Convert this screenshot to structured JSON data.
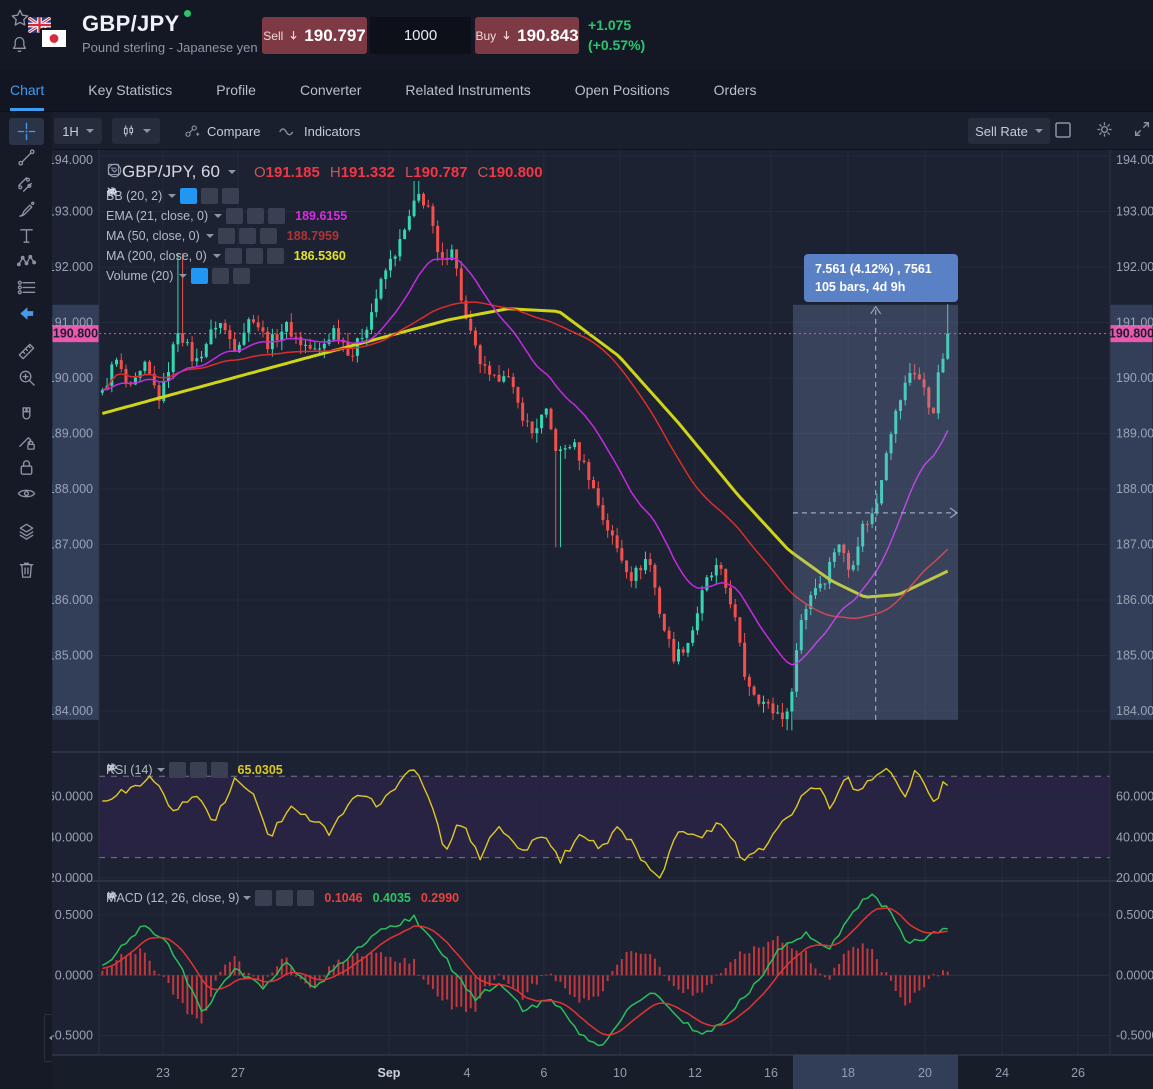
{
  "header": {
    "symbol": "GBP/JPY",
    "subtitle": "Pound sterling - Japanese yen",
    "sell_label": "Sell",
    "sell_price": "190.797",
    "quantity": "1000",
    "buy_label": "Buy",
    "buy_price": "190.843",
    "change_abs": "+1.075",
    "change_pct": "(+0.57%)"
  },
  "tabs": [
    {
      "label": "Chart",
      "active": true
    },
    {
      "label": "Key Statistics",
      "active": false
    },
    {
      "label": "Profile",
      "active": false
    },
    {
      "label": "Converter",
      "active": false
    },
    {
      "label": "Related Instruments",
      "active": false
    },
    {
      "label": "Open Positions",
      "active": false
    },
    {
      "label": "Orders",
      "active": false
    }
  ],
  "toolbar": {
    "interval": "1H",
    "compare_label": "Compare",
    "indicators_label": "Indicators",
    "sell_rate_label": "Sell Rate"
  },
  "side_tools": {
    "groups": [
      [
        "crosshair",
        "trend-line",
        "parallel-channel",
        "brush",
        "text",
        "xabcd-pattern",
        "forecast",
        "arrow-left"
      ],
      [
        "ruler",
        "zoom-in"
      ],
      [
        "magnet",
        "drawing-lock",
        "lock-all",
        "hide-drawings"
      ],
      [
        "layers"
      ],
      [
        "remove-drawings"
      ]
    ],
    "active": "crosshair"
  },
  "legend": {
    "title": "GBP/JPY, 60",
    "o_label": "O",
    "o": "191.185",
    "h_label": "H",
    "h": "191.332",
    "l_label": "L",
    "l": "190.787",
    "c_label": "C",
    "c": "190.800"
  },
  "indicators": [
    {
      "label": "BB (20, 2)",
      "value": "",
      "value_color": "",
      "eye_active": true
    },
    {
      "label": "EMA (21, close, 0)",
      "value": "189.6155",
      "value_color": "#d52ee0",
      "eye_active": false
    },
    {
      "label": "MA (50, close, 0)",
      "value": "188.7959",
      "value_color": "#b03434",
      "eye_active": false
    },
    {
      "label": "MA (200, close, 0)",
      "value": "186.5360",
      "value_color": "#e3e524",
      "eye_active": false
    },
    {
      "label": "Volume (20)",
      "value": "",
      "value_color": "",
      "eye_active": true
    }
  ],
  "rsi_legend": {
    "label": "RSI (14)",
    "value": "65.0305"
  },
  "macd_legend": {
    "label": "MACD (12, 26, close, 9)",
    "values": [
      {
        "v": "0.1046",
        "color": "#e8413f"
      },
      {
        "v": "0.4035",
        "color": "#27c662"
      },
      {
        "v": "0.2990",
        "color": "#e8413f"
      }
    ]
  },
  "measure": {
    "line1": "7.561 (4.12%) , 7561",
    "line2": "105 bars, 4d 9h"
  },
  "time_axis": {
    "ticks": [
      {
        "label": "23",
        "f": 0.0633
      },
      {
        "label": "27",
        "f": 0.1375
      },
      {
        "label": "Sep",
        "f": 0.2868,
        "emph": true
      },
      {
        "label": "4",
        "f": 0.364
      },
      {
        "label": "6",
        "f": 0.44
      },
      {
        "label": "10",
        "f": 0.5153
      },
      {
        "label": "12",
        "f": 0.5895
      },
      {
        "label": "16",
        "f": 0.6647
      },
      {
        "label": "18",
        "f": 0.7409
      },
      {
        "label": "20",
        "f": 0.817
      },
      {
        "label": "24",
        "f": 0.8932
      },
      {
        "label": "26",
        "f": 0.9684
      }
    ],
    "highlight": {
      "f0": 0.6864,
      "f1": 0.8497
    }
  },
  "chart_data": [
    {
      "pane": "price",
      "type": "candlestick",
      "symbol": "GBP/JPY",
      "interval": "60",
      "ohlc": {
        "open": 191.185,
        "high": 191.332,
        "low": 190.787,
        "close": 190.8
      },
      "last_price": 190.8,
      "last_price_label": "190.800",
      "y_ticks": [
        {
          "v": 194,
          "label": "194.000"
        },
        {
          "v": 193,
          "label": "193.000"
        },
        {
          "v": 192,
          "label": "192.000"
        },
        {
          "v": 191,
          "label": "191.000"
        },
        {
          "v": 190,
          "label": "190.000"
        },
        {
          "v": 189,
          "label": "189.000"
        },
        {
          "v": 188,
          "label": "188.000"
        },
        {
          "v": 187,
          "label": "187.000"
        },
        {
          "v": 186,
          "label": "186.000"
        },
        {
          "v": 185,
          "label": "185.000"
        },
        {
          "v": 184,
          "label": "184.000"
        }
      ],
      "y_range": [
        183.26,
        194.11
      ],
      "bars": 180,
      "bars_span": [
        0.001,
        0.8418
      ],
      "close_anchors": [
        [
          0,
          189.6
        ],
        [
          0.018,
          190.35
        ],
        [
          0.035,
          189.75
        ],
        [
          0.053,
          190.2
        ],
        [
          0.071,
          189.6
        ],
        [
          0.092,
          190.9
        ],
        [
          0.112,
          190.25
        ],
        [
          0.139,
          191.05
        ],
        [
          0.159,
          190.55
        ],
        [
          0.179,
          191.15
        ],
        [
          0.198,
          190.6
        ],
        [
          0.218,
          190.95
        ],
        [
          0.235,
          190.65
        ],
        [
          0.256,
          190.45
        ],
        [
          0.276,
          190.9
        ],
        [
          0.296,
          190.4
        ],
        [
          0.315,
          191.0
        ],
        [
          0.335,
          191.9
        ],
        [
          0.355,
          192.5
        ],
        [
          0.374,
          193.3
        ],
        [
          0.386,
          193.1
        ],
        [
          0.4,
          192.0
        ],
        [
          0.414,
          192.4
        ],
        [
          0.429,
          191.1
        ],
        [
          0.445,
          190.35
        ],
        [
          0.461,
          189.9
        ],
        [
          0.476,
          190.15
        ],
        [
          0.492,
          189.5
        ],
        [
          0.508,
          189.0
        ],
        [
          0.524,
          189.4
        ],
        [
          0.539,
          188.6
        ],
        [
          0.555,
          188.85
        ],
        [
          0.574,
          188.3
        ],
        [
          0.591,
          187.5
        ],
        [
          0.609,
          186.9
        ],
        [
          0.626,
          186.4
        ],
        [
          0.645,
          186.8
        ],
        [
          0.661,
          185.6
        ],
        [
          0.676,
          184.95
        ],
        [
          0.694,
          185.3
        ],
        [
          0.712,
          186.3
        ],
        [
          0.727,
          186.6
        ],
        [
          0.744,
          185.9
        ],
        [
          0.759,
          184.6
        ],
        [
          0.774,
          184.25
        ],
        [
          0.791,
          184.0
        ],
        [
          0.809,
          183.9
        ],
        [
          0.824,
          185.6
        ],
        [
          0.838,
          186.2
        ],
        [
          0.853,
          186.4
        ],
        [
          0.868,
          187.1
        ],
        [
          0.882,
          186.5
        ],
        [
          0.896,
          187.3
        ],
        [
          0.912,
          187.6
        ],
        [
          0.927,
          188.9
        ],
        [
          0.941,
          189.6
        ],
        [
          0.955,
          190.2
        ],
        [
          0.967,
          189.9
        ],
        [
          0.979,
          189.3
        ],
        [
          0.988,
          190.2
        ],
        [
          1,
          190.8
        ]
      ],
      "wick_events": [
        {
          "t": 0.092,
          "high": 192.25
        },
        {
          "t": 0.374,
          "high": 193.55
        },
        {
          "t": 0.539,
          "low": 186.95
        },
        {
          "t": 0.809,
          "low": 183.65
        },
        {
          "t": 1,
          "high": 191.33
        }
      ],
      "overlays": [
        {
          "name": "EMA (21)",
          "type": "ema",
          "period": 21,
          "color_key": "ema21",
          "last": 189.6155
        },
        {
          "name": "MA (50)",
          "type": "sma",
          "period": 50,
          "color_key": "ma50",
          "last": 188.7959
        },
        {
          "name": "MA (200)",
          "type": "anchors",
          "color_key": "ma200",
          "last": 186.536,
          "anchors": [
            [
              0,
              189.35
            ],
            [
              0.24,
              190.35
            ],
            [
              0.41,
              191.05
            ],
            [
              0.48,
              191.25
            ],
            [
              0.54,
              191.2
            ],
            [
              0.61,
              190.4
            ],
            [
              0.68,
              189.2
            ],
            [
              0.75,
              187.9
            ],
            [
              0.81,
              186.9
            ],
            [
              0.86,
              186.35
            ],
            [
              0.9,
              186.05
            ],
            [
              0.94,
              186.1
            ],
            [
              1,
              186.54
            ]
          ]
        }
      ],
      "measure_region": {
        "f0": 0.6864,
        "f1": 0.8497,
        "arrow_f": 0.7682,
        "price_top": 191.32,
        "price_bottom": 183.84,
        "mid_price": 187.57
      }
    },
    {
      "pane": "rsi",
      "type": "line",
      "name": "RSI (14)",
      "last": 65.0305,
      "y_ticks": [
        {
          "v": 60,
          "label": "60.0000"
        },
        {
          "v": 40,
          "label": "40.0000"
        },
        {
          "v": 20,
          "label": "20.0000"
        }
      ],
      "bands": [
        70,
        30
      ],
      "y_range": [
        18.5,
        81.95
      ],
      "anchors": [
        [
          0.006,
          58
        ],
        [
          0.047,
          66
        ],
        [
          0.059,
          72
        ],
        [
          0.088,
          52
        ],
        [
          0.112,
          62
        ],
        [
          0.135,
          48
        ],
        [
          0.159,
          68
        ],
        [
          0.182,
          60
        ],
        [
          0.2,
          40
        ],
        [
          0.224,
          56
        ],
        [
          0.247,
          50
        ],
        [
          0.271,
          42
        ],
        [
          0.3,
          62
        ],
        [
          0.329,
          55
        ],
        [
          0.353,
          68
        ],
        [
          0.371,
          75
        ],
        [
          0.388,
          58
        ],
        [
          0.406,
          32
        ],
        [
          0.424,
          48
        ],
        [
          0.447,
          30
        ],
        [
          0.47,
          46
        ],
        [
          0.494,
          32
        ],
        [
          0.518,
          42
        ],
        [
          0.541,
          28
        ],
        [
          0.565,
          42
        ],
        [
          0.588,
          34
        ],
        [
          0.612,
          46
        ],
        [
          0.635,
          30
        ],
        [
          0.659,
          20
        ],
        [
          0.682,
          46
        ],
        [
          0.706,
          38
        ],
        [
          0.729,
          48
        ],
        [
          0.759,
          28
        ],
        [
          0.782,
          36
        ],
        [
          0.806,
          48
        ],
        [
          0.824,
          58
        ],
        [
          0.841,
          66
        ],
        [
          0.859,
          55
        ],
        [
          0.876,
          70
        ],
        [
          0.894,
          62
        ],
        [
          0.912,
          70
        ],
        [
          0.929,
          74
        ],
        [
          0.947,
          60
        ],
        [
          0.959,
          72
        ],
        [
          0.971,
          64
        ],
        [
          0.982,
          55
        ],
        [
          0.994,
          70
        ],
        [
          1,
          65
        ]
      ]
    },
    {
      "pane": "macd",
      "type": "macd",
      "name": "MACD (12, 26, close, 9)",
      "last_values": {
        "histogram": 0.1046,
        "macd": 0.4035,
        "signal": 0.299
      },
      "y_ticks": [
        {
          "v": 0.5,
          "label": "0.5000"
        },
        {
          "v": 0,
          "label": "0.0000"
        },
        {
          "v": -0.5,
          "label": "-0.5000"
        }
      ],
      "y_range": [
        -0.66,
        0.781
      ],
      "macd_anchors": [
        [
          0,
          0.05
        ],
        [
          0.05,
          0.42
        ],
        [
          0.08,
          0.28
        ],
        [
          0.12,
          -0.3
        ],
        [
          0.16,
          0.05
        ],
        [
          0.19,
          -0.1
        ],
        [
          0.22,
          0.1
        ],
        [
          0.25,
          -0.12
        ],
        [
          0.29,
          0.15
        ],
        [
          0.33,
          0.38
        ],
        [
          0.37,
          0.48
        ],
        [
          0.41,
          0.1
        ],
        [
          0.44,
          -0.2
        ],
        [
          0.47,
          -0.05
        ],
        [
          0.5,
          -0.3
        ],
        [
          0.53,
          -0.18
        ],
        [
          0.56,
          -0.45
        ],
        [
          0.59,
          -0.6
        ],
        [
          0.62,
          -0.3
        ],
        [
          0.65,
          -0.12
        ],
        [
          0.68,
          -0.35
        ],
        [
          0.71,
          -0.5
        ],
        [
          0.74,
          -0.32
        ],
        [
          0.77,
          -0.08
        ],
        [
          0.8,
          0.22
        ],
        [
          0.83,
          0.35
        ],
        [
          0.855,
          0.2
        ],
        [
          0.88,
          0.45
        ],
        [
          0.905,
          0.68
        ],
        [
          0.93,
          0.52
        ],
        [
          0.95,
          0.25
        ],
        [
          0.975,
          0.32
        ],
        [
          1,
          0.4035
        ]
      ],
      "signal_period": 9,
      "histogram_scale": 1.5
    }
  ],
  "colors": {
    "up": "#35d6b4",
    "down": "#f1504c",
    "ema21": "#c42be0",
    "ma50": "#df2c2c",
    "ma200": "#cfd419",
    "price_line": "#f04eb5",
    "price_label_bg": "#ee57b0",
    "rsi_line": "#ddc922",
    "rsi_band": "#2c2349",
    "macd_line": "#29bf5b",
    "signal_line": "#e23434",
    "histogram": "#c2363e",
    "accent": "#3d9df0",
    "positive": "#28c76f",
    "trade_button": "#7d3a45",
    "measure_box": "#5a81c6"
  }
}
